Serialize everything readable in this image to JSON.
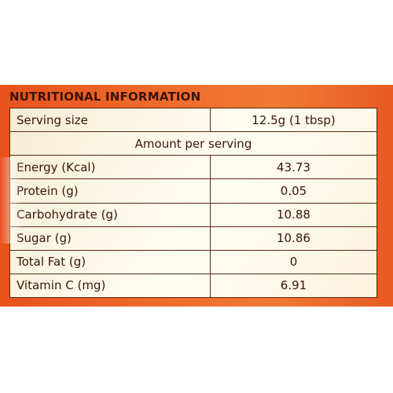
{
  "title": "NUTRITIONAL INFORMATION",
  "serving": {
    "label": "Serving size",
    "value": "12.5g (1 tbsp)"
  },
  "amount_header": "Amount per serving",
  "rows": [
    {
      "label": "Energy (Kcal)",
      "value": "43.73"
    },
    {
      "label": "Protein (g)",
      "value": "0.05"
    },
    {
      "label": "Carbohydrate (g)",
      "value": "10.88"
    },
    {
      "label": "Sugar (g)",
      "value": "10.86"
    },
    {
      "label": "Total Fat (g)",
      "value": "0"
    },
    {
      "label": "Vitamin C (mg)",
      "value": "6.91"
    }
  ],
  "colors": {
    "panel": "#ef6a2a",
    "text": "#3b1608",
    "table_bg": "#fbf6e6"
  }
}
